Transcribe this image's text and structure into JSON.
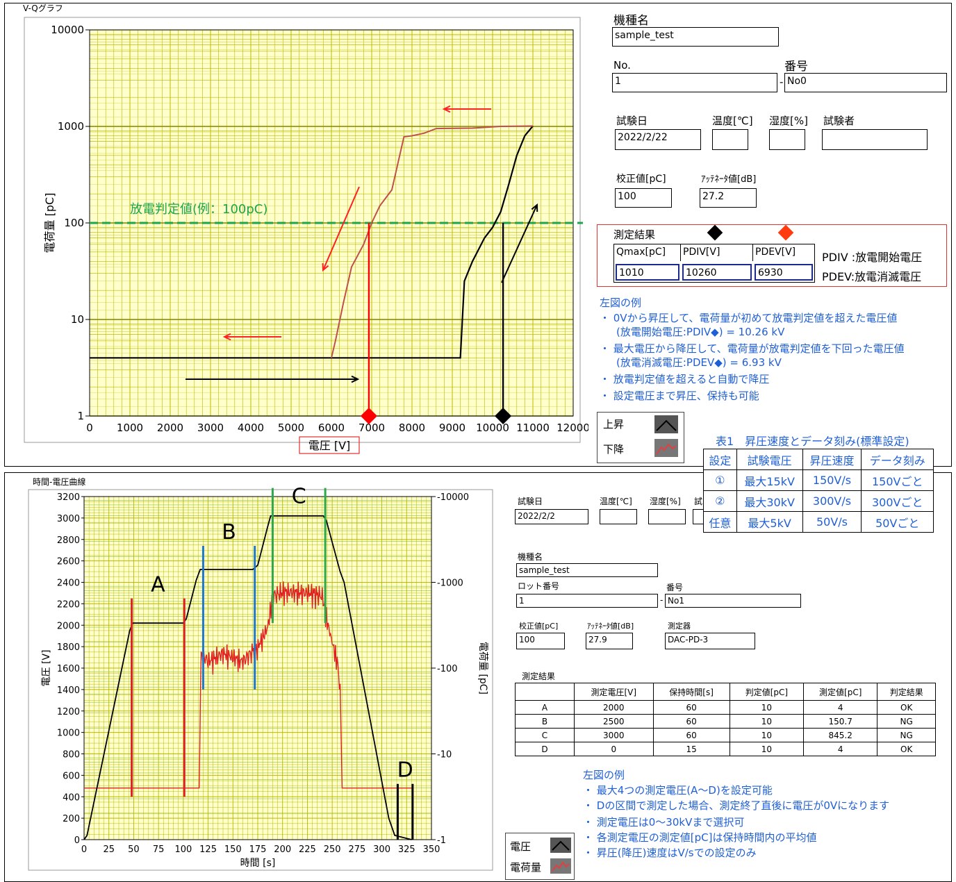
{
  "top": {
    "title": "V-Qグラフ",
    "chart_data": {
      "type": "line",
      "xlabel": "電圧 [V]",
      "ylabel": "電荷量 [pC]",
      "xlim": [
        0,
        12000
      ],
      "ylim": [
        1,
        10000
      ],
      "yscale": "log",
      "grid": true,
      "xticks": [
        0,
        1000,
        2000,
        3000,
        4000,
        5000,
        6000,
        7000,
        8000,
        9000,
        10000,
        11000,
        12000
      ],
      "yticks": [
        1,
        10,
        100,
        1000,
        10000
      ],
      "ytick_labels": [
        "1",
        "10",
        "100",
        "1000",
        "10000"
      ],
      "threshold_label": "放電判定値(例：100pC)",
      "threshold": 100,
      "series": [
        {
          "name": "上昇",
          "color": "#000000",
          "x": [
            0,
            9200,
            9300,
            9500,
            9800,
            10000,
            10200,
            10400,
            10600,
            10800,
            11000
          ],
          "y": [
            4,
            4,
            25,
            40,
            70,
            90,
            130,
            250,
            500,
            800,
            1010
          ]
        },
        {
          "name": "下降",
          "color": "#c0504d",
          "x": [
            11000,
            10200,
            9500,
            8600,
            8300,
            8000,
            7800,
            7500,
            7200,
            7000,
            6800,
            6500,
            6300,
            6100,
            6000
          ],
          "y": [
            1010,
            1000,
            960,
            950,
            850,
            800,
            780,
            220,
            150,
            100,
            60,
            35,
            15,
            6,
            4
          ]
        }
      ],
      "markers": [
        {
          "x": 6930,
          "color": "#ff0000"
        },
        {
          "x": 10260,
          "color": "#000000"
        }
      ]
    },
    "legend": {
      "up": "上昇",
      "down": "下降"
    },
    "model_label": "機種名",
    "model_value": "sample_test",
    "no_label": "No.",
    "no_value": "1",
    "num_label": "番号",
    "num_value": "No0",
    "dash": "-",
    "date_label": "試験日",
    "date_value": "2022/2/22",
    "temp_label": "温度[℃]",
    "humid_label": "湿度[%]",
    "tester_label": "試験者",
    "calib_label": "校正値[pC]",
    "calib_value": "100",
    "atten_label": "ｱｯﾃﾈｰﾀ値[dB]",
    "atten_value": "27.2",
    "result_label": "測定結果",
    "result_headers": [
      "Qmax[pC]",
      "PDIV[V]",
      "PDEV[V]"
    ],
    "result_values": [
      "1010",
      "10260",
      "6930"
    ],
    "pdiv_note": "PDIV :放電開始電圧",
    "pdev_note": "PDEV:放電消滅電圧",
    "notes_title": "左図の例",
    "notes": [
      "・ 0Vから昇圧して、電荷量が初めて放電判定値を超えた電圧値",
      "(放電開始電圧:PDIV◆) = 10.26 kV",
      "・ 最大電圧から降圧して、電荷量が放電判定値を下回った電圧値",
      "(放電消滅電圧:PDEV◆) = 6.93 kV",
      "・ 放電判定値を超えると自動で降圧",
      "・ 設定電圧まで昇圧、保持も可能"
    ]
  },
  "table1": {
    "title": "表1　昇圧速度とデータ刻み(標準設定)",
    "headers": [
      "設定",
      "試験電圧",
      "昇圧速度",
      "データ刻み"
    ],
    "rows": [
      [
        "①",
        "最大15kV",
        "150V/s",
        "150Vごと"
      ],
      [
        "②",
        "最大30kV",
        "300V/s",
        "300Vごと"
      ],
      [
        "任意",
        "最大5kV",
        "50V/s",
        "50Vごと"
      ]
    ]
  },
  "bottom": {
    "title": "時間-電圧曲線",
    "chart_data": {
      "type": "line",
      "xlabel": "時間 [s]",
      "ylabel": "電圧 [V]",
      "y2label": "電荷量 [pC]",
      "xlim": [
        0,
        350
      ],
      "ylim": [
        0,
        3200
      ],
      "y2lim": [
        1,
        10000
      ],
      "y2scale": "log",
      "xticks": [
        0,
        25,
        50,
        75,
        100,
        125,
        150,
        175,
        200,
        225,
        250,
        275,
        300,
        325,
        350
      ],
      "yticks": [
        0,
        200,
        400,
        600,
        800,
        1000,
        1200,
        1400,
        1600,
        1800,
        2000,
        2200,
        2400,
        2600,
        2800,
        3000,
        3200
      ],
      "y2ticks": [
        1,
        10,
        100,
        1000,
        10000
      ],
      "y2tick_labels": [
        "1",
        "10",
        "100",
        "1000",
        "10000"
      ],
      "series": [
        {
          "name": "電圧",
          "color": "#000000",
          "x": [
            0,
            3,
            46,
            49,
            100,
            103,
            113,
            117,
            170,
            175,
            185,
            188,
            241,
            244,
            258,
            262,
            307,
            313,
            330
          ],
          "y": [
            0,
            40,
            1950,
            2020,
            2020,
            2060,
            2420,
            2520,
            2520,
            2560,
            2920,
            3020,
            3020,
            2980,
            2500,
            2400,
            200,
            40,
            0
          ]
        },
        {
          "name": "電荷量",
          "color": "#e02020",
          "x": [
            0,
            116,
            118,
            125,
            140,
            160,
            170,
            172,
            185,
            190,
            200,
            230,
            240,
            245,
            250,
            255,
            258,
            260,
            330
          ],
          "y": [
            4,
            4,
            150,
            120,
            150,
            120,
            160,
            150,
            300,
            700,
            780,
            750,
            700,
            350,
            200,
            120,
            60,
            4,
            4
          ]
        }
      ],
      "segments": [
        {
          "label": "A",
          "x1": 48,
          "x2": 101,
          "color": "#e02020"
        },
        {
          "label": "B",
          "x1": 120,
          "x2": 172,
          "color": "#1f78c8"
        },
        {
          "label": "C",
          "x1": 190,
          "x2": 243,
          "color": "#2ea84a"
        },
        {
          "label": "D",
          "x1": 316,
          "x2": 331,
          "color": "#000000"
        }
      ]
    },
    "legend": {
      "v": "電圧",
      "q": "電荷量"
    },
    "date_label": "試験日",
    "date_value": "2022/2/2",
    "temp_label": "温度[℃]",
    "humid_label": "湿度[%]",
    "tester_label": "試",
    "model_label": "機種名",
    "model_value": "sample_test",
    "lot_label": "ロット番号",
    "lot_value": "1",
    "num_label": "番号",
    "num_value": "No1",
    "dash": "-",
    "calib_label": "校正値[pC]",
    "calib_value": "100",
    "atten_label": "ｱｯﾃﾈｰﾀ値[dB]",
    "atten_value": "27.9",
    "device_label": "測定器",
    "device_value": "DAC-PD-3",
    "result_label": "測定結果",
    "result_headers": [
      "",
      "測定電圧[V]",
      "保持時間[s]",
      "判定値[pC]",
      "測定値[pC]",
      "判定結果"
    ],
    "result_rows": [
      [
        "A",
        "2000",
        "60",
        "10",
        "4",
        "OK"
      ],
      [
        "B",
        "2500",
        "60",
        "10",
        "150.7",
        "NG"
      ],
      [
        "C",
        "3000",
        "60",
        "10",
        "845.2",
        "NG"
      ],
      [
        "D",
        "0",
        "15",
        "10",
        "4",
        "OK"
      ]
    ],
    "notes_title": "左図の例",
    "notes": [
      "・ 最大4つの測定電圧(A～D)を設定可能",
      "・ Dの区間で測定した場合、測定終了直後に電圧が0Vになります",
      "・ 測定電圧は0～30kVまで選択可",
      "・ 各測定電圧の測定値[pC]は保持時間内の平均値",
      "・ 昇圧(降圧)速度はV/sでの設定のみ"
    ]
  }
}
